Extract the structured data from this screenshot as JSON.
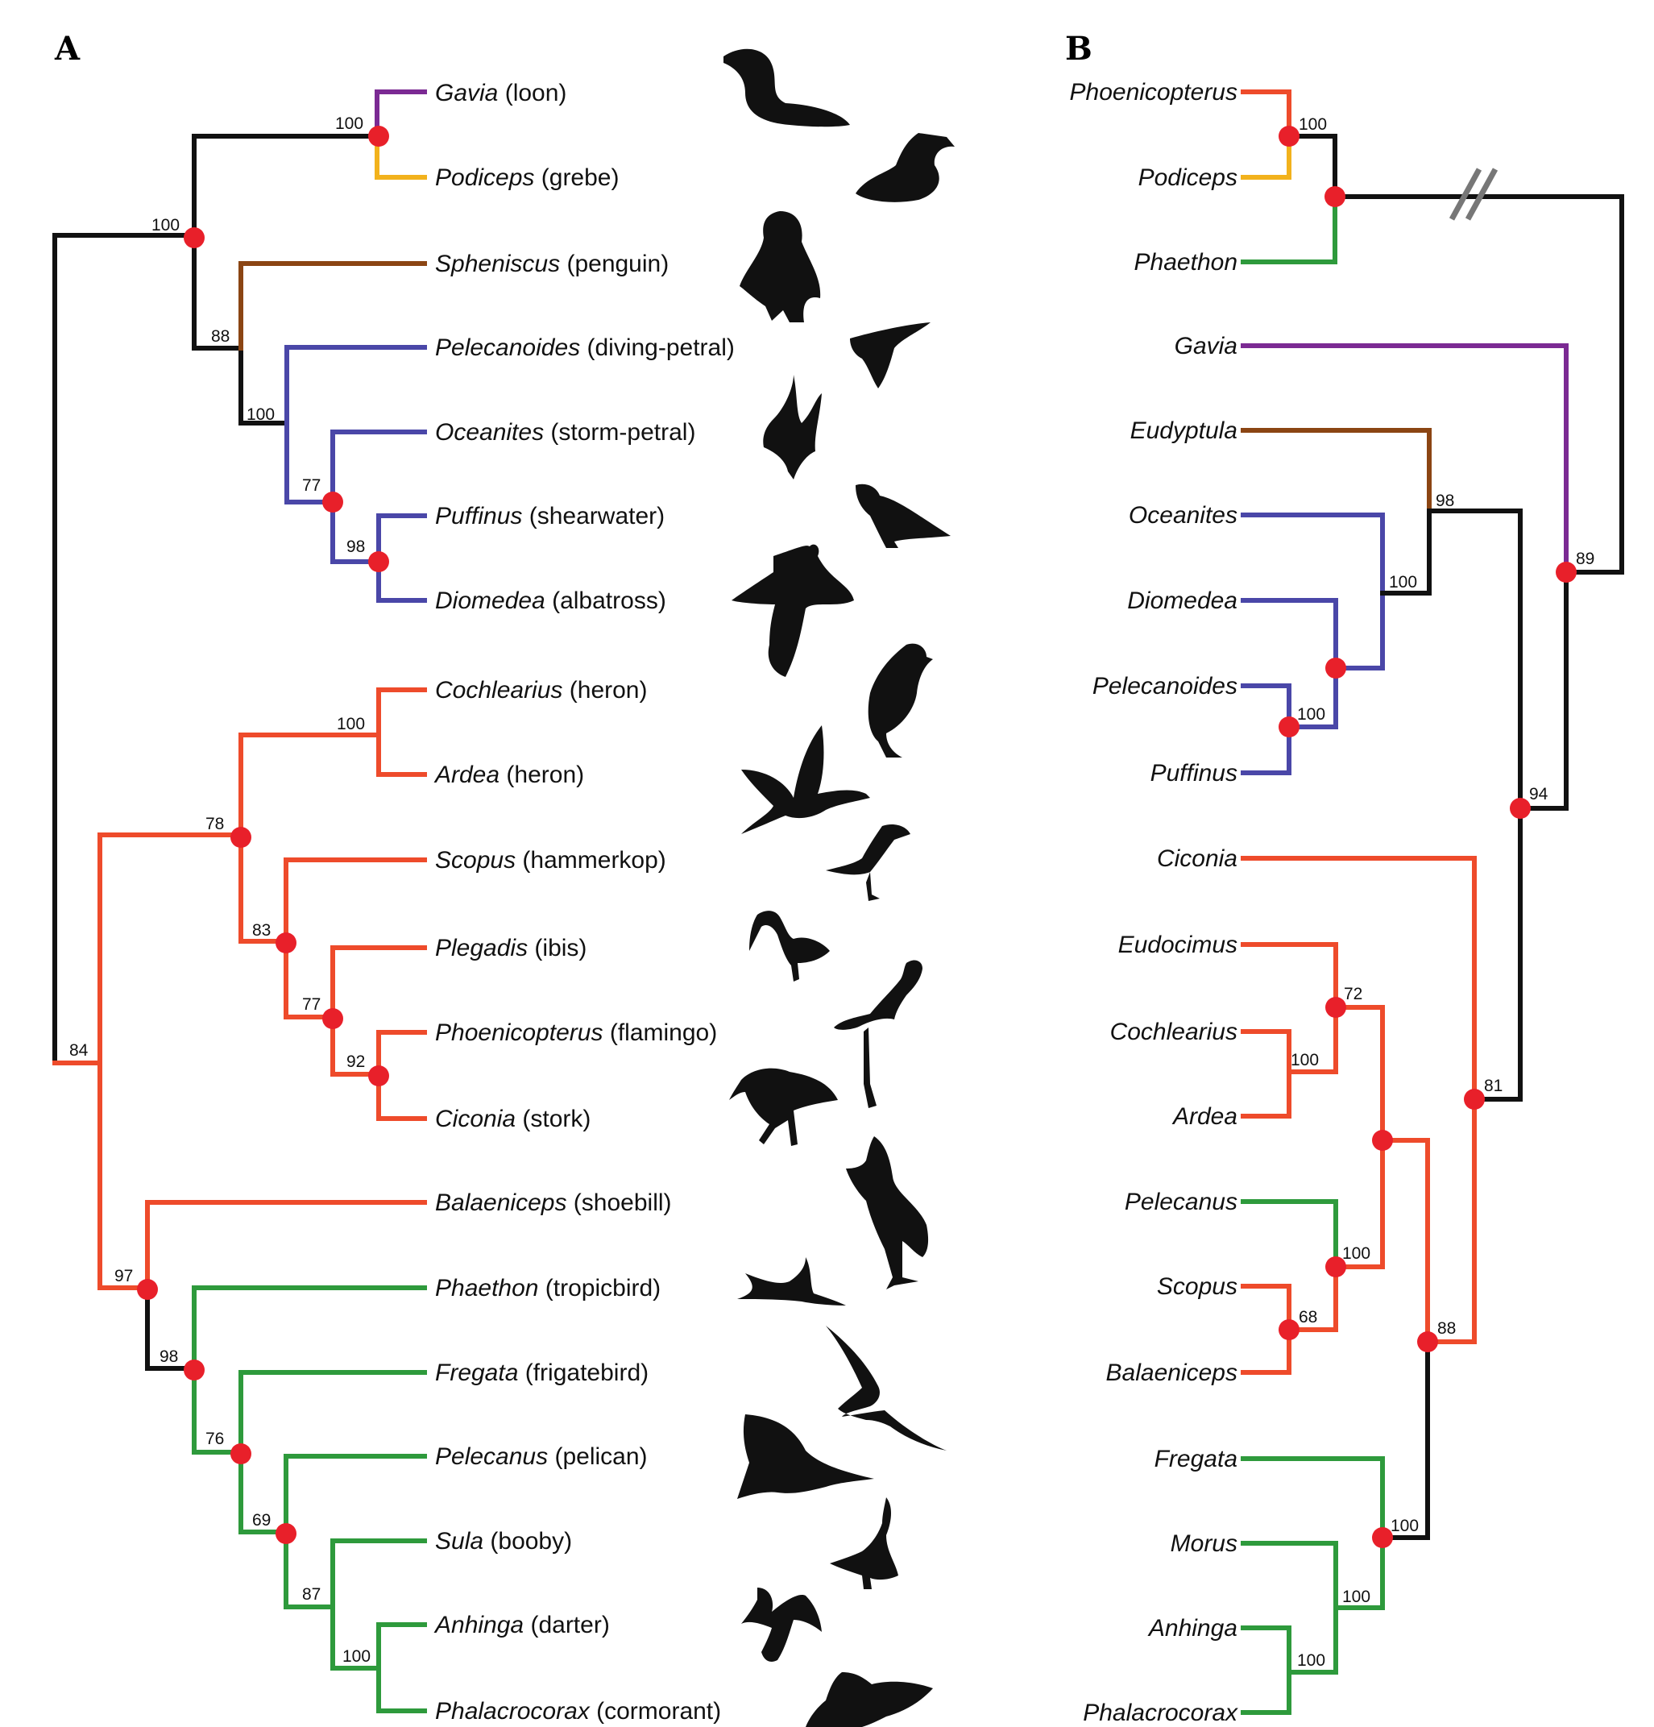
{
  "colors": {
    "black": "#111111",
    "purple": "#7b2a93",
    "orange": "#f2b21c",
    "brown": "#8b4513",
    "blue": "#4a47a8",
    "red": "#ee4b2b",
    "green": "#2e9a3c",
    "node": "#e8202a"
  },
  "panels": [
    {
      "id": "A",
      "letter": "A",
      "taxa": [
        {
          "genus": "Gavia",
          "common": "(loon)"
        },
        {
          "genus": "Podiceps",
          "common": "(grebe)"
        },
        {
          "genus": "Spheniscus",
          "common": "(penguin)"
        },
        {
          "genus": "Pelecanoides",
          "common": "(diving-petral)"
        },
        {
          "genus": "Oceanites",
          "common": "(storm-petral)"
        },
        {
          "genus": "Puffinus",
          "common": "(shearwater)"
        },
        {
          "genus": "Diomedea",
          "common": "(albatross)"
        },
        {
          "genus": "Cochlearius",
          "common": "(heron)"
        },
        {
          "genus": "Ardea",
          "common": "(heron)"
        },
        {
          "genus": "Scopus",
          "common": "(hammerkop)"
        },
        {
          "genus": "Plegadis",
          "common": "(ibis)"
        },
        {
          "genus": "Phoenicopterus",
          "common": "(flamingo)"
        },
        {
          "genus": "Ciconia",
          "common": "(stork)"
        },
        {
          "genus": "Balaeniceps",
          "common": "(shoebill)"
        },
        {
          "genus": "Phaethon",
          "common": "(tropicbird)"
        },
        {
          "genus": "Fregata",
          "common": "(frigatebird)"
        },
        {
          "genus": "Pelecanus",
          "common": "(pelican)"
        },
        {
          "genus": "Sula",
          "common": "(booby)"
        },
        {
          "genus": "Anhinga",
          "common": "(darter)"
        },
        {
          "genus": "Phalacrocorax",
          "common": "(cormorant)"
        }
      ],
      "support_values": [
        "100",
        "100",
        "88",
        "100",
        "77",
        "98",
        "100",
        "78",
        "83",
        "77",
        "92",
        "84",
        "97",
        "98",
        "76",
        "69",
        "87",
        "100"
      ]
    },
    {
      "id": "B",
      "letter": "B",
      "taxa": [
        {
          "genus": "Phoenicopterus"
        },
        {
          "genus": "Podiceps"
        },
        {
          "genus": "Phaethon"
        },
        {
          "genus": "Gavia"
        },
        {
          "genus": "Eudyptula"
        },
        {
          "genus": "Oceanites"
        },
        {
          "genus": "Diomedea"
        },
        {
          "genus": "Pelecanoides"
        },
        {
          "genus": "Puffinus"
        },
        {
          "genus": "Ciconia"
        },
        {
          "genus": "Eudocimus"
        },
        {
          "genus": "Cochlearius"
        },
        {
          "genus": "Ardea"
        },
        {
          "genus": "Pelecanus"
        },
        {
          "genus": "Scopus"
        },
        {
          "genus": "Balaeniceps"
        },
        {
          "genus": "Fregata"
        },
        {
          "genus": "Morus"
        },
        {
          "genus": "Anhinga"
        },
        {
          "genus": "Phalacrocorax"
        }
      ],
      "support_values": [
        "100",
        "98",
        "100",
        "100",
        "89",
        "94",
        "72",
        "100",
        "100",
        "68",
        "88",
        "81",
        "100",
        "100",
        "100"
      ]
    }
  ],
  "silhouettes": [
    "loon",
    "grebe",
    "penguin",
    "diving-petrel",
    "storm-petrel",
    "shearwater",
    "albatross",
    "heron-perched",
    "heron-flying",
    "hammerkop",
    "ibis",
    "flamingo",
    "stork",
    "shoebill",
    "tropicbird",
    "frigatebird",
    "pelican",
    "booby",
    "darter",
    "cormorant"
  ]
}
